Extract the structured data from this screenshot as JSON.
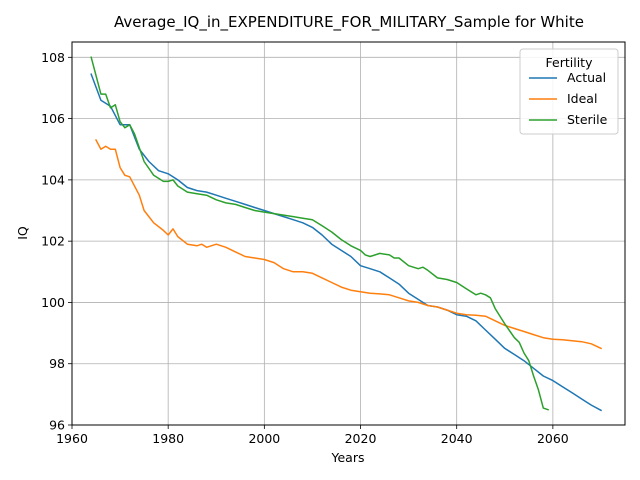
{
  "chart_data": {
    "type": "line",
    "title": "Average_IQ_in_EXPENDITURE_FOR_MILITARY_Sample for White",
    "xlabel": "Years",
    "ylabel": "IQ",
    "xlim": [
      1960,
      2075
    ],
    "ylim": [
      96,
      108.5
    ],
    "xticks": [
      1960,
      1980,
      2000,
      2020,
      2040,
      2060
    ],
    "yticks": [
      96,
      98,
      100,
      102,
      104,
      106,
      108
    ],
    "grid": true,
    "legend": {
      "title": "Fertility",
      "placement": "top-right"
    },
    "series": [
      {
        "name": "Actual",
        "color": "#1f77b4",
        "x": [
          1964,
          1966,
          1968,
          1970,
          1972,
          1974,
          1976,
          1978,
          1980,
          1982,
          1984,
          1986,
          1988,
          1990,
          1992,
          1994,
          1996,
          1998,
          2000,
          2002,
          2004,
          2006,
          2008,
          2010,
          2012,
          2014,
          2016,
          2018,
          2020,
          2022,
          2024,
          2026,
          2028,
          2030,
          2032,
          2034,
          2036,
          2038,
          2040,
          2042,
          2044,
          2046,
          2048,
          2050,
          2052,
          2054,
          2056,
          2058,
          2060,
          2062,
          2064,
          2066,
          2068,
          2070
        ],
        "y": [
          107.45,
          106.6,
          106.4,
          105.8,
          105.8,
          105.0,
          104.6,
          104.3,
          104.2,
          104.0,
          103.75,
          103.65,
          103.6,
          103.5,
          103.4,
          103.3,
          103.2,
          103.1,
          103.0,
          102.9,
          102.8,
          102.7,
          102.6,
          102.45,
          102.2,
          101.9,
          101.7,
          101.5,
          101.2,
          101.1,
          101.0,
          100.8,
          100.6,
          100.3,
          100.1,
          99.9,
          99.85,
          99.75,
          99.6,
          99.55,
          99.4,
          99.1,
          98.8,
          98.5,
          98.3,
          98.1,
          97.85,
          97.6,
          97.45,
          97.25,
          97.05,
          96.85,
          96.65,
          96.48
        ]
      },
      {
        "name": "Ideal",
        "color": "#ff7f0e",
        "x": [
          1965,
          1966,
          1967,
          1968,
          1969,
          1970,
          1971,
          1972,
          1974,
          1975,
          1977,
          1979,
          1980,
          1981,
          1982,
          1984,
          1986,
          1987,
          1988,
          1990,
          1992,
          1994,
          1996,
          1998,
          2000,
          2002,
          2004,
          2006,
          2008,
          2010,
          2012,
          2014,
          2016,
          2018,
          2020,
          2022,
          2024,
          2026,
          2028,
          2030,
          2032,
          2034,
          2036,
          2038,
          2040,
          2042,
          2044,
          2046,
          2048,
          2050,
          2052,
          2054,
          2056,
          2058,
          2060,
          2062,
          2064,
          2066,
          2068,
          2070
        ],
        "y": [
          105.3,
          105.0,
          105.1,
          105.0,
          105.0,
          104.4,
          104.15,
          104.1,
          103.5,
          103.0,
          102.6,
          102.35,
          102.2,
          102.4,
          102.15,
          101.9,
          101.85,
          101.9,
          101.8,
          101.9,
          101.8,
          101.65,
          101.5,
          101.45,
          101.4,
          101.3,
          101.1,
          101.0,
          101.0,
          100.95,
          100.8,
          100.65,
          100.5,
          100.4,
          100.35,
          100.3,
          100.28,
          100.25,
          100.15,
          100.05,
          100.0,
          99.9,
          99.85,
          99.75,
          99.65,
          99.6,
          99.58,
          99.55,
          99.4,
          99.25,
          99.15,
          99.05,
          98.95,
          98.85,
          98.8,
          98.78,
          98.75,
          98.72,
          98.65,
          98.5
        ]
      },
      {
        "name": "Sterile",
        "color": "#2ca02c",
        "x": [
          1964,
          1966,
          1967,
          1968,
          1969,
          1970,
          1971,
          1972,
          1973,
          1975,
          1977,
          1979,
          1980,
          1981,
          1982,
          1984,
          1986,
          1988,
          1990,
          1992,
          1994,
          1996,
          1998,
          2000,
          2002,
          2004,
          2006,
          2008,
          2010,
          2012,
          2014,
          2016,
          2018,
          2020,
          2021,
          2022,
          2024,
          2026,
          2027,
          2028,
          2030,
          2032,
          2033,
          2034,
          2036,
          2038,
          2040,
          2042,
          2044,
          2045,
          2046,
          2047,
          2048,
          2050,
          2052,
          2053,
          2054,
          2055,
          2056,
          2057,
          2058,
          2059
        ],
        "y": [
          108.0,
          106.8,
          106.8,
          106.35,
          106.45,
          105.9,
          105.7,
          105.8,
          105.5,
          104.6,
          104.15,
          103.95,
          103.95,
          104.0,
          103.8,
          103.6,
          103.55,
          103.5,
          103.35,
          103.25,
          103.2,
          103.1,
          103.0,
          102.95,
          102.9,
          102.85,
          102.8,
          102.75,
          102.7,
          102.5,
          102.3,
          102.05,
          101.85,
          101.7,
          101.55,
          101.5,
          101.6,
          101.55,
          101.45,
          101.45,
          101.2,
          101.1,
          101.15,
          101.05,
          100.8,
          100.75,
          100.65,
          100.45,
          100.25,
          100.3,
          100.25,
          100.15,
          99.8,
          99.3,
          98.85,
          98.7,
          98.35,
          98.1,
          97.6,
          97.15,
          96.55,
          96.5
        ]
      }
    ]
  }
}
